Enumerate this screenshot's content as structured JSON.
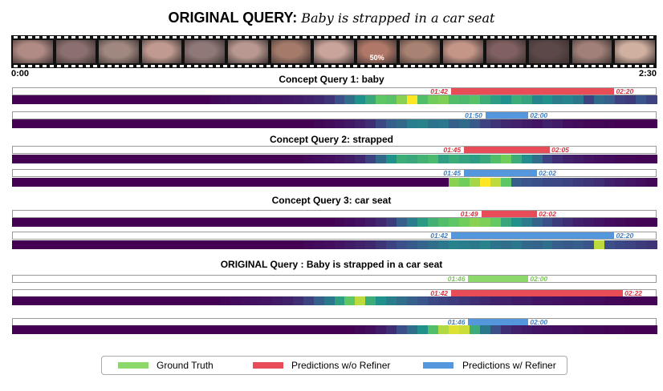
{
  "title": {
    "bold": "ORIGINAL QUERY:",
    "query": "Baby is strapped in a car seat"
  },
  "filmstrip": {
    "frame_captions": [
      "",
      "",
      "",
      "",
      "",
      "",
      "",
      "",
      "50%",
      "",
      "",
      "",
      "",
      "",
      ""
    ],
    "frame_colors": [
      "#b08a84",
      "#8c7070",
      "#a08880",
      "#c09a90",
      "#907878",
      "#b89890",
      "#a47a6a",
      "#c8a49a",
      "#b07868",
      "#a88272",
      "#c49688",
      "#806060",
      "#5c4848",
      "#a08078",
      "#d0b0a0"
    ]
  },
  "timeline": {
    "start": "0:00",
    "end": "2:30",
    "duration_sec": 150
  },
  "colors": {
    "gt": "#8dd86a",
    "red": "#e74c57",
    "blue": "#5497dd",
    "red_text": "#d9323e",
    "blue_text": "#3d7cc0",
    "green_text": "#7cc45a"
  },
  "legend": [
    {
      "label": "Ground Truth",
      "color": "#8dd86a"
    },
    {
      "label": "Predictions w/o Refiner",
      "color": "#e74c57"
    },
    {
      "label": "Predictions w/ Refiner",
      "color": "#5497dd"
    }
  ],
  "queries": [
    {
      "title": "Concept Query 1: baby",
      "rows": [
        {
          "kind": "red",
          "start": "01:42",
          "end": "02:20",
          "start_sec": 102,
          "end_sec": 140,
          "heat": [
            0,
            0,
            0,
            0,
            0,
            0,
            0,
            0,
            0,
            0,
            0,
            0,
            0,
            0,
            0,
            0,
            0,
            0,
            0,
            0.02,
            0.03,
            0.04,
            0.04,
            0.05,
            0.06,
            0.06,
            0.07,
            0.08,
            0.1,
            0.12,
            0.16,
            0.24,
            0.36,
            0.5,
            0.6,
            0.74,
            0.72,
            0.82,
            1,
            0.7,
            0.78,
            0.8,
            0.7,
            0.68,
            0.72,
            0.62,
            0.55,
            0.5,
            0.62,
            0.58,
            0.45,
            0.5,
            0.42,
            0.45,
            0.4,
            0.2,
            0.35,
            0.3,
            0.2,
            0.18,
            0.26,
            0.2
          ]
        },
        {
          "kind": "blue",
          "start": "01:50",
          "end": "02:00",
          "start_sec": 110,
          "end_sec": 120,
          "heat": [
            0,
            0,
            0,
            0,
            0,
            0,
            0,
            0,
            0,
            0,
            0,
            0,
            0,
            0,
            0,
            0,
            0,
            0,
            0,
            0,
            0,
            0,
            0,
            0,
            0,
            0,
            0,
            0,
            0,
            0.02,
            0.03,
            0.05,
            0.07,
            0.1,
            0.14,
            0.22,
            0.3,
            0.34,
            0.42,
            0.44,
            0.38,
            0.4,
            0.3,
            0.35,
            0.28,
            0.2,
            0.16,
            0.12,
            0.1,
            0.08,
            0.06,
            0.1,
            0.08,
            0.04,
            0.03,
            0.02,
            0.02,
            0.01,
            0,
            0,
            0,
            0
          ]
        }
      ]
    },
    {
      "title": "Concept Query 2: strapped",
      "rows": [
        {
          "kind": "red",
          "start": "01:45",
          "end": "02:05",
          "start_sec": 105,
          "end_sec": 125,
          "heat": [
            0,
            0,
            0,
            0,
            0,
            0,
            0,
            0,
            0,
            0,
            0,
            0,
            0,
            0,
            0,
            0,
            0,
            0,
            0,
            0,
            0,
            0,
            0,
            0,
            0,
            0,
            0,
            0,
            0.02,
            0.03,
            0.04,
            0.06,
            0.08,
            0.12,
            0.2,
            0.34,
            0.5,
            0.62,
            0.6,
            0.64,
            0.68,
            0.56,
            0.62,
            0.58,
            0.55,
            0.6,
            0.7,
            0.78,
            0.62,
            0.48,
            0.36,
            0.2,
            0.14,
            0.1,
            0.08,
            0.06,
            0.04,
            0.03,
            0.02,
            0.02,
            0.01,
            0.01
          ]
        },
        {
          "kind": "blue",
          "start": "01:45",
          "end": "02:02",
          "start_sec": 105,
          "end_sec": 122,
          "heat": [
            0,
            0,
            0,
            0,
            0,
            0,
            0,
            0,
            0,
            0,
            0,
            0,
            0,
            0,
            0,
            0,
            0,
            0,
            0,
            0,
            0,
            0,
            0,
            0,
            0,
            0,
            0,
            0,
            0,
            0,
            0,
            0,
            0,
            0,
            0,
            0,
            0,
            0,
            0,
            0,
            0,
            0,
            0.82,
            0.78,
            0.86,
            1,
            0.9,
            0.74,
            0.3,
            0.26,
            0.24,
            0.22,
            0.22,
            0.2,
            0.18,
            0.16,
            0.14,
            0.1,
            0.08,
            0.06,
            0.04,
            0.02
          ]
        }
      ]
    },
    {
      "title": "Concept Query 3: car seat",
      "rows": [
        {
          "kind": "red",
          "start": "01:49",
          "end": "02:02",
          "start_sec": 109,
          "end_sec": 122,
          "heat": [
            0,
            0,
            0,
            0,
            0,
            0,
            0,
            0,
            0,
            0,
            0,
            0,
            0,
            0,
            0,
            0,
            0,
            0,
            0,
            0,
            0,
            0,
            0,
            0,
            0,
            0,
            0,
            0,
            0,
            0,
            0,
            0.02,
            0.03,
            0.05,
            0.08,
            0.12,
            0.18,
            0.3,
            0.42,
            0.54,
            0.64,
            0.7,
            0.74,
            0.78,
            0.82,
            0.8,
            0.76,
            0.6,
            0.5,
            0.42,
            0.32,
            0.24,
            0.18,
            0.14,
            0.1,
            0.08,
            0.06,
            0.04,
            0.03,
            0.02,
            0.01,
            0.01
          ]
        },
        {
          "kind": "blue",
          "start": "01:42",
          "end": "02:20",
          "start_sec": 102,
          "end_sec": 140,
          "heat": [
            0,
            0,
            0,
            0,
            0,
            0,
            0,
            0,
            0,
            0,
            0,
            0,
            0,
            0,
            0,
            0,
            0,
            0,
            0,
            0,
            0,
            0,
            0,
            0,
            0,
            0,
            0,
            0,
            0.02,
            0.03,
            0.04,
            0.06,
            0.08,
            0.1,
            0.12,
            0.16,
            0.2,
            0.24,
            0.28,
            0.32,
            0.36,
            0.4,
            0.44,
            0.42,
            0.4,
            0.44,
            0.38,
            0.36,
            0.4,
            0.34,
            0.32,
            0.36,
            0.3,
            0.28,
            0.3,
            0.26,
            0.9,
            0.24,
            0.22,
            0.2,
            0.18,
            0.16
          ]
        }
      ]
    },
    {
      "title": "ORIGINAL Query : Baby is strapped in a car seat",
      "gt": {
        "start": "01:46",
        "end": "02:00",
        "start_sec": 106,
        "end_sec": 120
      },
      "rows": [
        {
          "kind": "red",
          "start": "01:42",
          "end": "02:22",
          "start_sec": 102,
          "end_sec": 142,
          "heat": [
            0,
            0,
            0,
            0,
            0,
            0,
            0,
            0,
            0,
            0,
            0,
            0,
            0,
            0,
            0,
            0,
            0,
            0,
            0,
            0,
            0.02,
            0.03,
            0.04,
            0.05,
            0.06,
            0.08,
            0.1,
            0.14,
            0.2,
            0.3,
            0.4,
            0.56,
            0.74,
            0.9,
            0.62,
            0.5,
            0.42,
            0.36,
            0.3,
            0.26,
            0.22,
            0.2,
            0.18,
            0.16,
            0.14,
            0.12,
            0.1,
            0.1,
            0.08,
            0.08,
            0.06,
            0.06,
            0.05,
            0.04,
            0.04,
            0.03,
            0.03,
            0.02,
            0.02,
            0.01,
            0.01,
            0.01
          ]
        },
        {
          "kind": "blue",
          "start": "01:46",
          "end": "02:00",
          "start_sec": 106,
          "end_sec": 120,
          "heat": [
            0,
            0,
            0,
            0,
            0,
            0,
            0,
            0,
            0,
            0,
            0,
            0,
            0,
            0,
            0,
            0,
            0,
            0,
            0,
            0,
            0,
            0,
            0,
            0,
            0,
            0,
            0,
            0,
            0,
            0,
            0,
            0,
            0,
            0.02,
            0.04,
            0.08,
            0.14,
            0.24,
            0.36,
            0.5,
            0.7,
            0.88,
            0.95,
            0.92,
            0.62,
            0.4,
            0.24,
            0.14,
            0.1,
            0.08,
            0.06,
            0.05,
            0.04,
            0.04,
            0.03,
            0.02,
            0.02,
            0.01,
            0.01,
            0,
            0,
            0
          ]
        }
      ]
    }
  ]
}
